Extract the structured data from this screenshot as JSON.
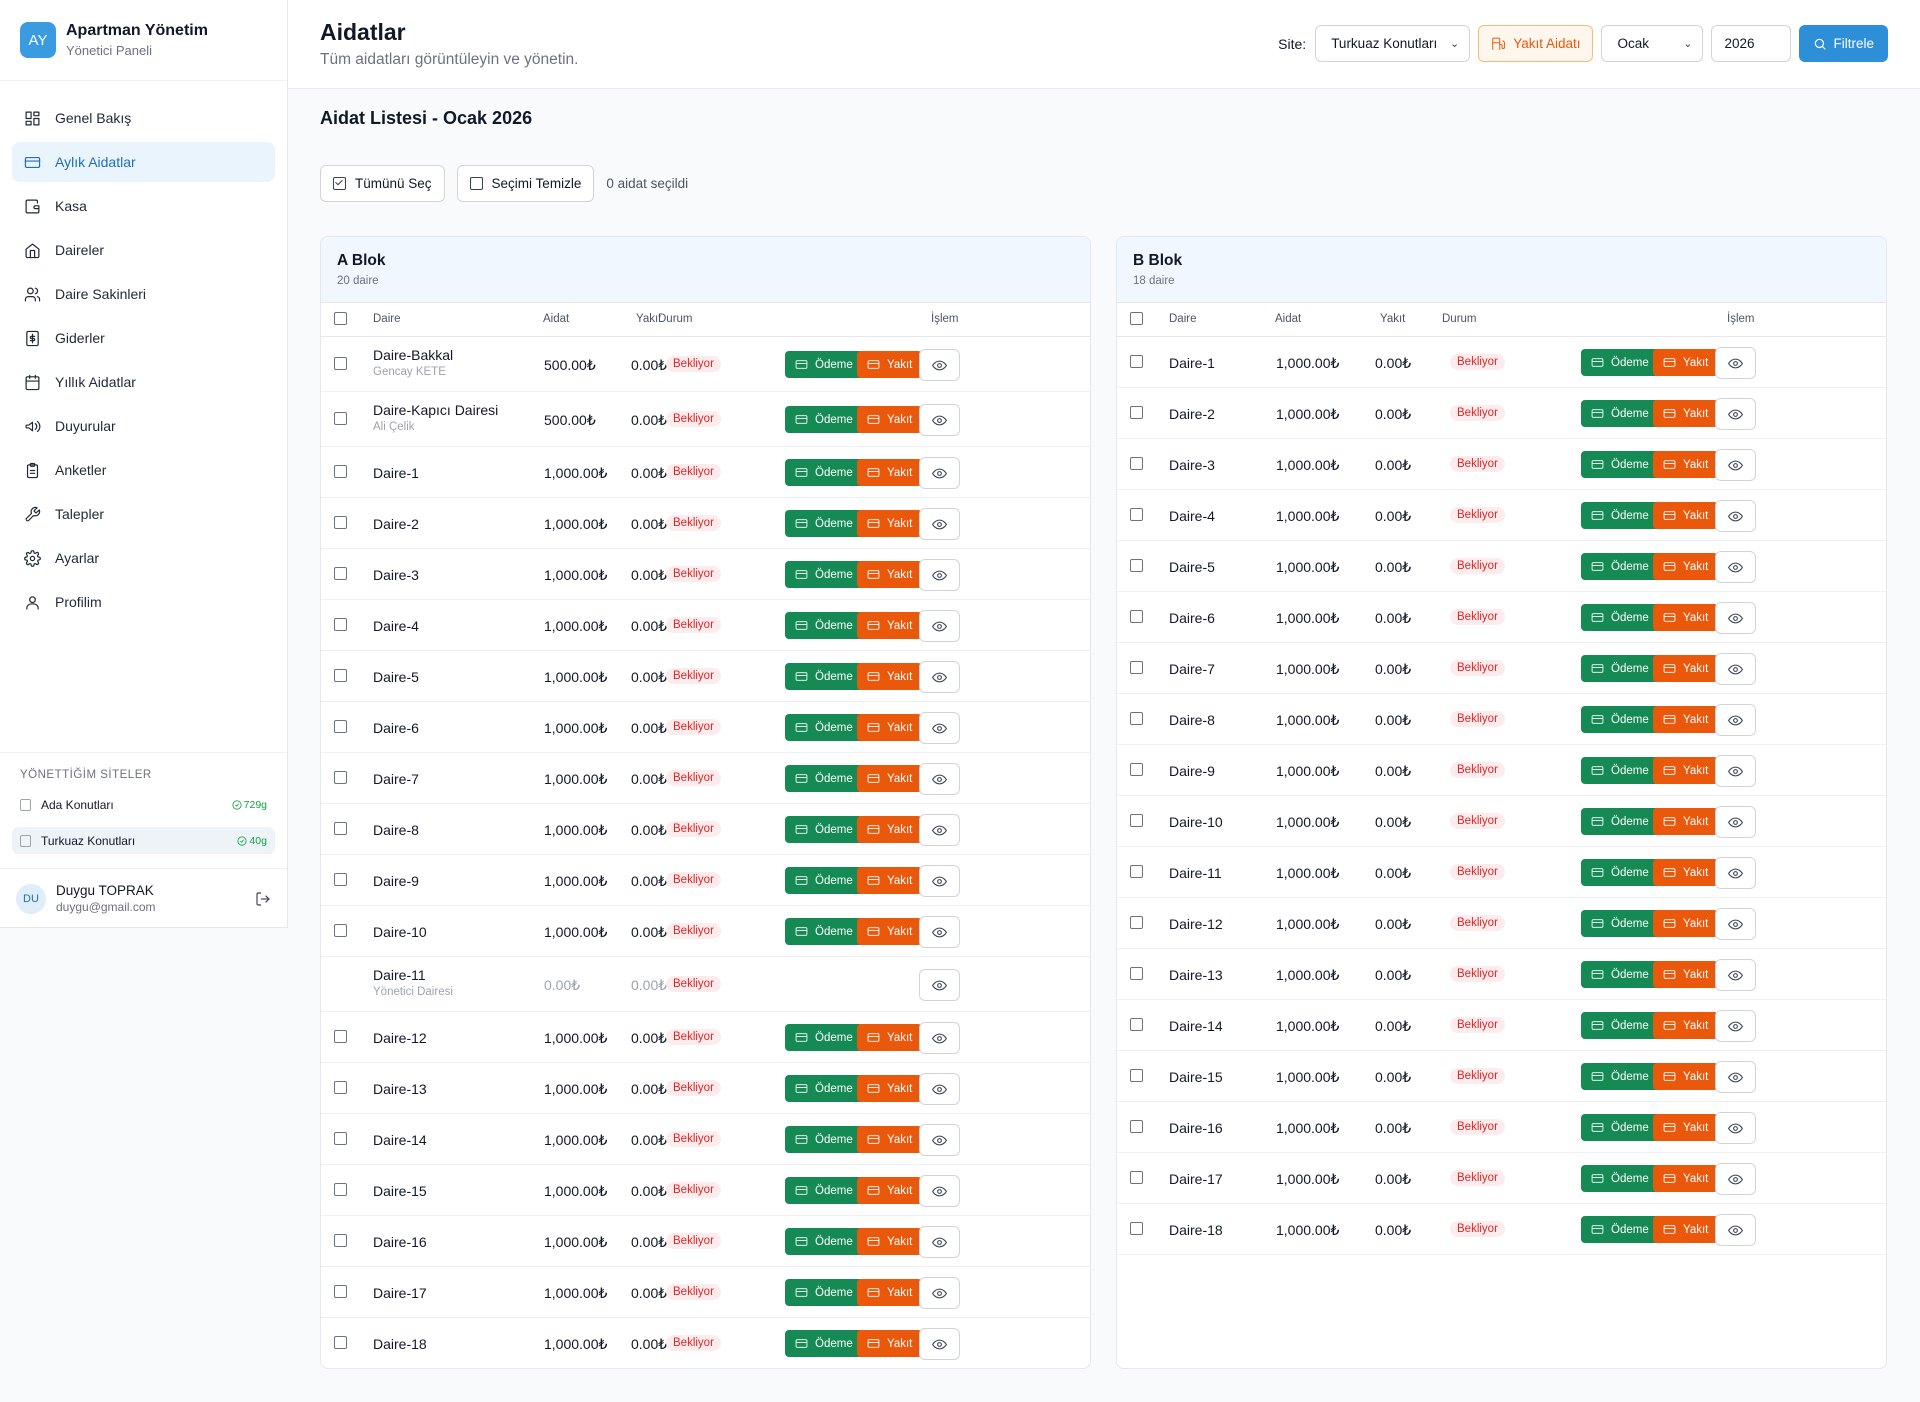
{
  "brand": {
    "logo": "AY",
    "title": "Apartman Yönetim",
    "subtitle": "Yönetici Paneli"
  },
  "nav": [
    {
      "label": "Genel Bakış",
      "icon": "dashboard-icon"
    },
    {
      "label": "Aylık Aidatlar",
      "icon": "card-icon",
      "active": true
    },
    {
      "label": "Kasa",
      "icon": "wallet-icon"
    },
    {
      "label": "Daireler",
      "icon": "home-icon"
    },
    {
      "label": "Daire Sakinleri",
      "icon": "users-icon"
    },
    {
      "label": "Giderler",
      "icon": "receipt-icon"
    },
    {
      "label": "Yıllık Aidatlar",
      "icon": "calendar-icon"
    },
    {
      "label": "Duyurular",
      "icon": "megaphone-icon"
    },
    {
      "label": "Anketler",
      "icon": "clipboard-icon"
    },
    {
      "label": "Talepler",
      "icon": "wrench-icon"
    },
    {
      "label": "Ayarlar",
      "icon": "gear-icon"
    },
    {
      "label": "Profilim",
      "icon": "user-icon"
    }
  ],
  "sites": {
    "heading": "YÖNETTİĞİM SİTELER",
    "items": [
      {
        "name": "Ada Konutları",
        "badge": "729g"
      },
      {
        "name": "Turkuaz Konutları",
        "badge": "40g",
        "active": true
      }
    ]
  },
  "user": {
    "initials": "DU",
    "name": "Duygu TOPRAK",
    "email": "duygu@gmail.com"
  },
  "header": {
    "title": "Aidatlar",
    "subtitle": "Tüm aidatları görüntüleyin ve yönetin."
  },
  "filters": {
    "site_label": "Site:",
    "site_value": "Turkuaz Konutları",
    "fuel_label": "Yakıt Aidatı",
    "month": "Ocak",
    "year": "2026",
    "filter_label": "Filtrele"
  },
  "list_title": "Aidat Listesi - Ocak 2026",
  "selection": {
    "select_all": "Tümünü Seç",
    "clear": "Seçimi Temizle",
    "count_text": "0 aidat seçildi"
  },
  "columns": {
    "unit": "Daire",
    "fee": "Aidat",
    "fuel": "Yakıt",
    "status": "Durum",
    "action": "İşlem"
  },
  "actions": {
    "pay": "Ödeme",
    "fuel": "Yakıt"
  },
  "blocks": [
    {
      "name": "A Blok",
      "count": "20 daire",
      "rows": [
        {
          "unit": "Daire-Bakkal",
          "resident": "Gencay KETE",
          "fee": "500.00₺",
          "fuel": "0.00₺",
          "status": "Bekliyor"
        },
        {
          "unit": "Daire-Kapıcı Dairesi",
          "resident": "Ali Çelik",
          "fee": "500.00₺",
          "fuel": "0.00₺",
          "status": "Bekliyor"
        },
        {
          "unit": "Daire-1",
          "fee": "1,000.00₺",
          "fuel": "0.00₺",
          "status": "Bekliyor"
        },
        {
          "unit": "Daire-2",
          "fee": "1,000.00₺",
          "fuel": "0.00₺",
          "status": "Bekliyor"
        },
        {
          "unit": "Daire-3",
          "fee": "1,000.00₺",
          "fuel": "0.00₺",
          "status": "Bekliyor"
        },
        {
          "unit": "Daire-4",
          "fee": "1,000.00₺",
          "fuel": "0.00₺",
          "status": "Bekliyor"
        },
        {
          "unit": "Daire-5",
          "fee": "1,000.00₺",
          "fuel": "0.00₺",
          "status": "Bekliyor"
        },
        {
          "unit": "Daire-6",
          "fee": "1,000.00₺",
          "fuel": "0.00₺",
          "status": "Bekliyor"
        },
        {
          "unit": "Daire-7",
          "fee": "1,000.00₺",
          "fuel": "0.00₺",
          "status": "Bekliyor"
        },
        {
          "unit": "Daire-8",
          "fee": "1,000.00₺",
          "fuel": "0.00₺",
          "status": "Bekliyor"
        },
        {
          "unit": "Daire-9",
          "fee": "1,000.00₺",
          "fuel": "0.00₺",
          "status": "Bekliyor"
        },
        {
          "unit": "Daire-10",
          "fee": "1,000.00₺",
          "fuel": "0.00₺",
          "status": "Bekliyor"
        },
        {
          "unit": "Daire-11",
          "resident": "Yönetici Dairesi",
          "fee": "0.00₺",
          "fuel": "0.00₺",
          "status": "Bekliyor",
          "exempt": true
        },
        {
          "unit": "Daire-12",
          "fee": "1,000.00₺",
          "fuel": "0.00₺",
          "status": "Bekliyor"
        },
        {
          "unit": "Daire-13",
          "fee": "1,000.00₺",
          "fuel": "0.00₺",
          "status": "Bekliyor"
        },
        {
          "unit": "Daire-14",
          "fee": "1,000.00₺",
          "fuel": "0.00₺",
          "status": "Bekliyor"
        },
        {
          "unit": "Daire-15",
          "fee": "1,000.00₺",
          "fuel": "0.00₺",
          "status": "Bekliyor"
        },
        {
          "unit": "Daire-16",
          "fee": "1,000.00₺",
          "fuel": "0.00₺",
          "status": "Bekliyor"
        },
        {
          "unit": "Daire-17",
          "fee": "1,000.00₺",
          "fuel": "0.00₺",
          "status": "Bekliyor"
        },
        {
          "unit": "Daire-18",
          "fee": "1,000.00₺",
          "fuel": "0.00₺",
          "status": "Bekliyor"
        }
      ]
    },
    {
      "name": "B Blok",
      "count": "18 daire",
      "rows": [
        {
          "unit": "Daire-1",
          "fee": "1,000.00₺",
          "fuel": "0.00₺",
          "status": "Bekliyor"
        },
        {
          "unit": "Daire-2",
          "fee": "1,000.00₺",
          "fuel": "0.00₺",
          "status": "Bekliyor"
        },
        {
          "unit": "Daire-3",
          "fee": "1,000.00₺",
          "fuel": "0.00₺",
          "status": "Bekliyor"
        },
        {
          "unit": "Daire-4",
          "fee": "1,000.00₺",
          "fuel": "0.00₺",
          "status": "Bekliyor"
        },
        {
          "unit": "Daire-5",
          "fee": "1,000.00₺",
          "fuel": "0.00₺",
          "status": "Bekliyor"
        },
        {
          "unit": "Daire-6",
          "fee": "1,000.00₺",
          "fuel": "0.00₺",
          "status": "Bekliyor"
        },
        {
          "unit": "Daire-7",
          "fee": "1,000.00₺",
          "fuel": "0.00₺",
          "status": "Bekliyor"
        },
        {
          "unit": "Daire-8",
          "fee": "1,000.00₺",
          "fuel": "0.00₺",
          "status": "Bekliyor"
        },
        {
          "unit": "Daire-9",
          "fee": "1,000.00₺",
          "fuel": "0.00₺",
          "status": "Bekliyor"
        },
        {
          "unit": "Daire-10",
          "fee": "1,000.00₺",
          "fuel": "0.00₺",
          "status": "Bekliyor"
        },
        {
          "unit": "Daire-11",
          "fee": "1,000.00₺",
          "fuel": "0.00₺",
          "status": "Bekliyor"
        },
        {
          "unit": "Daire-12",
          "fee": "1,000.00₺",
          "fuel": "0.00₺",
          "status": "Bekliyor"
        },
        {
          "unit": "Daire-13",
          "fee": "1,000.00₺",
          "fuel": "0.00₺",
          "status": "Bekliyor"
        },
        {
          "unit": "Daire-14",
          "fee": "1,000.00₺",
          "fuel": "0.00₺",
          "status": "Bekliyor"
        },
        {
          "unit": "Daire-15",
          "fee": "1,000.00₺",
          "fuel": "0.00₺",
          "status": "Bekliyor"
        },
        {
          "unit": "Daire-16",
          "fee": "1,000.00₺",
          "fuel": "0.00₺",
          "status": "Bekliyor"
        },
        {
          "unit": "Daire-17",
          "fee": "1,000.00₺",
          "fuel": "0.00₺",
          "status": "Bekliyor"
        },
        {
          "unit": "Daire-18",
          "fee": "1,000.00₺",
          "fuel": "0.00₺",
          "status": "Bekliyor"
        }
      ]
    }
  ],
  "colors": {
    "accent": "#2e8fd9",
    "pay": "#158a54",
    "fuel": "#ea580c",
    "pending": "#dc2626"
  }
}
